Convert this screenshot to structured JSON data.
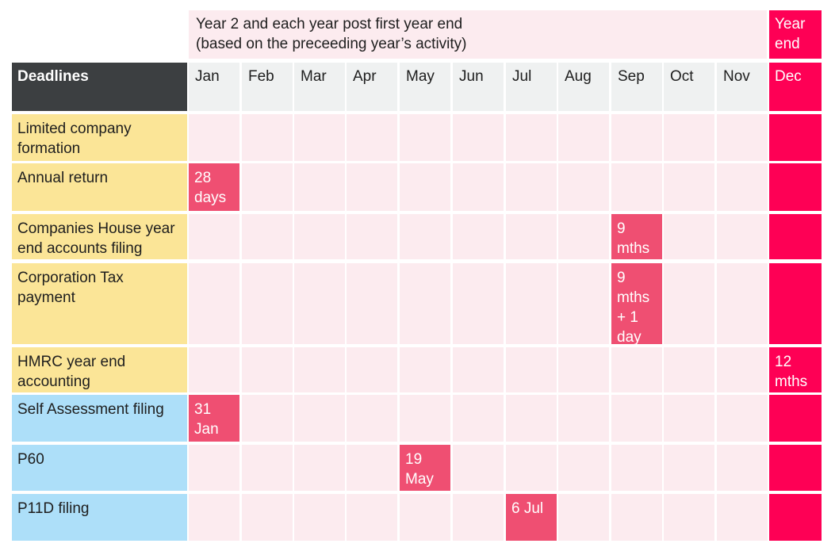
{
  "header": {
    "banner_text": "Year 2 and each year post first year end\n(based on the preceeding year’s activity)",
    "year_end_label": "Year\nend",
    "corner_label": "Deadlines",
    "months": [
      "Jan",
      "Feb",
      "Mar",
      "Apr",
      "May",
      "Jun",
      "Jul",
      "Aug",
      "Sep",
      "Oct",
      "Nov",
      "Dec"
    ]
  },
  "rows": [
    {
      "label": "Limited company\nformation",
      "group": "company",
      "deadline": null
    },
    {
      "label": "Annual return",
      "group": "company",
      "deadline": {
        "month_index": 0,
        "text": "28\ndays"
      }
    },
    {
      "label": "Companies House year\nend accounts filing",
      "group": "company",
      "deadline": {
        "month_index": 8,
        "text": "9\nmths"
      }
    },
    {
      "label": "Corporation Tax\npayment",
      "group": "company",
      "deadline": {
        "month_index": 8,
        "text": "9\nmths\n+ 1\nday"
      }
    },
    {
      "label": "HMRC year end\naccounting",
      "group": "company",
      "deadline": {
        "month_index": 11,
        "text": "12\nmths"
      }
    },
    {
      "label": "Self Assessment filing",
      "group": "personal",
      "deadline": {
        "month_index": 0,
        "text": "31\nJan"
      }
    },
    {
      "label": "P60",
      "group": "personal",
      "deadline": {
        "month_index": 4,
        "text": "19\nMay"
      }
    },
    {
      "label": "P11D filing",
      "group": "personal",
      "deadline": {
        "month_index": 6,
        "text": "6 Jul"
      }
    }
  ],
  "colors": {
    "banner_bg": "#fcebef",
    "year_end_accent": "#fe0055",
    "deadline_fill": "#ef4f72",
    "corner_bg": "#3c3f41",
    "month_header_bg": "#eff1f1",
    "company_row_label_bg": "#fbe597",
    "personal_row_label_bg": "#addff9",
    "grid_cell_bg": "#fcebef"
  }
}
